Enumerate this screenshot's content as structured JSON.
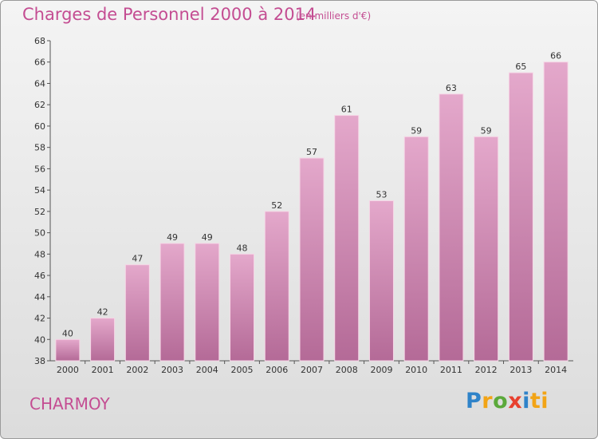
{
  "header": {
    "title": "Charges de Personnel 2000 à 2014",
    "subtitle": "(en milliers d'€)"
  },
  "footer": {
    "town": "CHARMOY",
    "logo": [
      "P",
      "r",
      "o",
      "x",
      "i",
      "ti"
    ]
  },
  "colors": {
    "bar_top": "#e4a8cb",
    "bar_bottom": "#b46a97",
    "accent": "#c44d92"
  },
  "chart_data": {
    "type": "bar",
    "title": "Charges de Personnel 2000 à 2014",
    "subtitle": "(en milliers d'€)",
    "categories": [
      "2000",
      "2001",
      "2002",
      "2003",
      "2004",
      "2005",
      "2006",
      "2007",
      "2008",
      "2009",
      "2010",
      "2011",
      "2012",
      "2013",
      "2014"
    ],
    "values": [
      40,
      42,
      47,
      49,
      49,
      48,
      52,
      57,
      61,
      53,
      59,
      63,
      59,
      65,
      66
    ],
    "ylim": [
      38,
      68
    ],
    "yticks": [
      38,
      40,
      42,
      44,
      46,
      48,
      50,
      52,
      54,
      56,
      58,
      60,
      62,
      64,
      66,
      68
    ],
    "xlabel": "",
    "ylabel": "",
    "grid": false
  }
}
